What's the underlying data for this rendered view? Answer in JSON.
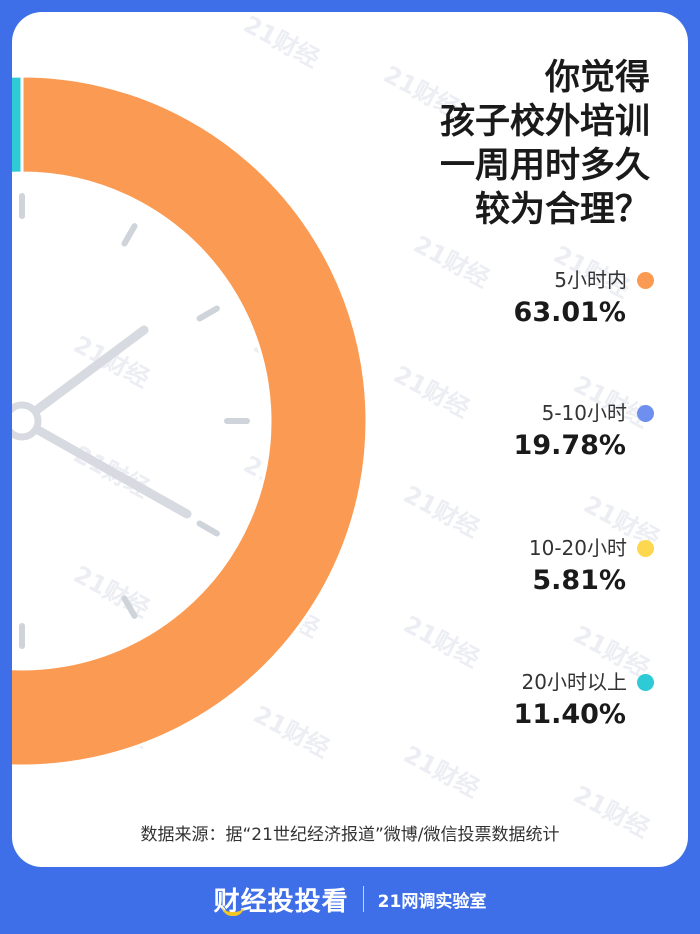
{
  "chart_data": {
    "type": "pie",
    "title": "你觉得孩子校外培训一周用时多久较为合理？",
    "title_lines": [
      "你觉得",
      "孩子校外培训",
      "一周用时多久",
      "较为合理？"
    ],
    "categories": [
      "5小时内",
      "5-10小时",
      "10-20小时",
      "20小时以上"
    ],
    "values": [
      63.01,
      19.78,
      5.81,
      11.4
    ],
    "value_labels": [
      "63.01%",
      "19.78%",
      "5.81%",
      "11.40%"
    ],
    "colors": [
      "#fb9a52",
      "#6e8ef0",
      "#fdd84e",
      "#2ecbd6"
    ],
    "legend_placement": "right"
  },
  "watermark": "21财经",
  "source": "数据来源：据“21世纪经济报道”微博/微信投票数据统计",
  "footer": {
    "brand": "财经投投看",
    "lab": "21网调实验室"
  }
}
